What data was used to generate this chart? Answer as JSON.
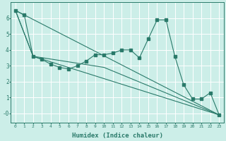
{
  "xlabel": "Humidex (Indice chaleur)",
  "ylabel": "",
  "bg_color": "#cceee8",
  "grid_color": "#ffffff",
  "line_color": "#2a7a6a",
  "xlim": [
    -0.5,
    23.5
  ],
  "ylim": [
    -0.6,
    7.0
  ],
  "yticks": [
    0,
    1,
    2,
    3,
    4,
    5,
    6
  ],
  "ytick_labels": [
    "-0",
    "1",
    "2",
    "3",
    "4",
    "5",
    "6"
  ],
  "xticks": [
    0,
    1,
    2,
    3,
    4,
    5,
    6,
    7,
    8,
    9,
    10,
    11,
    12,
    13,
    14,
    15,
    16,
    17,
    18,
    19,
    20,
    21,
    22,
    23
  ],
  "series": [
    [
      0,
      6.5
    ],
    [
      1,
      6.2
    ],
    [
      2,
      3.6
    ],
    [
      3,
      3.4
    ],
    [
      4,
      3.1
    ],
    [
      5,
      2.9
    ],
    [
      6,
      2.8
    ],
    [
      7,
      3.0
    ],
    [
      8,
      3.3
    ],
    [
      9,
      3.7
    ],
    [
      10,
      3.7
    ],
    [
      11,
      3.8
    ],
    [
      12,
      4.0
    ],
    [
      13,
      4.0
    ],
    [
      14,
      3.5
    ],
    [
      15,
      4.7
    ],
    [
      16,
      5.9
    ],
    [
      17,
      5.9
    ],
    [
      18,
      3.6
    ],
    [
      19,
      1.8
    ],
    [
      20,
      0.9
    ],
    [
      21,
      0.9
    ],
    [
      22,
      1.3
    ],
    [
      23,
      -0.1
    ]
  ],
  "line2": [
    [
      0,
      6.5
    ],
    [
      23,
      -0.1
    ]
  ],
  "line3": [
    [
      0,
      6.5
    ],
    [
      2,
      3.6
    ],
    [
      23,
      -0.1
    ]
  ],
  "line4": [
    [
      0,
      6.5
    ],
    [
      2,
      3.6
    ],
    [
      10,
      2.9
    ],
    [
      23,
      -0.1
    ]
  ]
}
